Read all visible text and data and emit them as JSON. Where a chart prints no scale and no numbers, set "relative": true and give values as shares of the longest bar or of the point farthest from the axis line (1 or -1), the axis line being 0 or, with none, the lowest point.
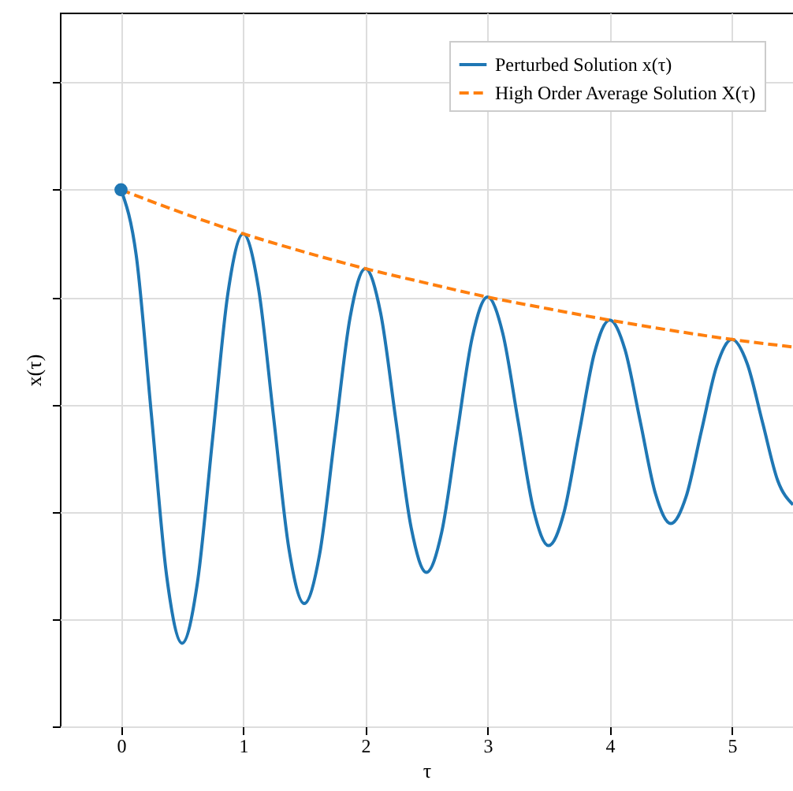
{
  "chart_data": {
    "type": "line",
    "relative": true,
    "xlabel": "τ",
    "ylabel": "x(τ)",
    "xlim": [
      -0.5,
      5.5
    ],
    "xticks": [
      0,
      1,
      2,
      3,
      4,
      5
    ],
    "grid": true,
    "legend": "top right",
    "tick_labels": "x",
    "series": [
      {
        "name": "Perturbed Solution x(τ)",
        "color": "#1f77b4",
        "line_style": "solid",
        "x": [
          0,
          0.125,
          0.25,
          0.375,
          0.5,
          0.625,
          0.75,
          0.875,
          1,
          1.125,
          1.25,
          1.375,
          1.5,
          1.625,
          1.75,
          1.875,
          2,
          2.125,
          2.25,
          2.375,
          2.5,
          2.625,
          2.75,
          2.875,
          3,
          3.125,
          3.25,
          3.375,
          3.5,
          3.625,
          3.75,
          3.875,
          4,
          4.125,
          4.25,
          4.375,
          4.5,
          4.625,
          4.75,
          4.875,
          5,
          5.125,
          5.25,
          5.375,
          5.5
        ],
        "values": [
          1,
          0.877,
          0.578,
          0.278,
          0.155,
          0.267,
          0.537,
          0.807,
          0.918,
          0.817,
          0.574,
          0.33,
          0.229,
          0.32,
          0.541,
          0.762,
          0.853,
          0.77,
          0.57,
          0.37,
          0.287,
          0.362,
          0.544,
          0.725,
          0.8,
          0.732,
          0.569,
          0.405,
          0.337,
          0.398,
          0.547,
          0.696,
          0.757,
          0.702,
          0.568,
          0.433,
          0.378,
          0.428,
          0.55,
          0.671,
          0.721,
          0.676,
          0.567,
          0.458,
          0.413
        ]
      },
      {
        "name": "High Order Average Solution X(τ)",
        "color": "#ff7f0e",
        "line_style": "dashed",
        "x": [
          0,
          0.5,
          1,
          1.5,
          2,
          2.5,
          3,
          3.5,
          4,
          4.5,
          5,
          5.5
        ],
        "values": [
          1,
          0.957,
          0.918,
          0.884,
          0.853,
          0.826,
          0.8,
          0.778,
          0.757,
          0.738,
          0.721,
          0.707
        ]
      },
      {
        "type": "scatter",
        "color": "#1f77b4",
        "marker": "circle",
        "x": [
          0
        ],
        "values": [
          1
        ]
      }
    ]
  }
}
